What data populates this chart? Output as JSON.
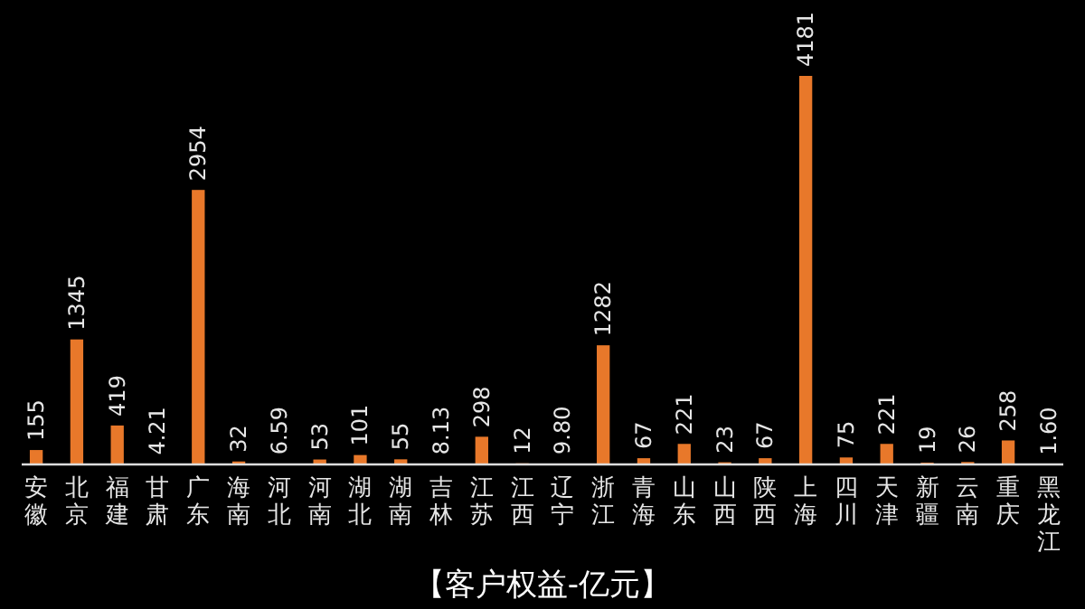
{
  "chart_data": {
    "type": "bar",
    "title": "【客户权益-亿元】",
    "categories": [
      "安徽",
      "北京",
      "福建",
      "甘肃",
      "广东",
      "海南",
      "河北",
      "河南",
      "湖北",
      "湖南",
      "吉林",
      "江苏",
      "江西",
      "辽宁",
      "浙江",
      "青海",
      "山东",
      "山西",
      "陕西",
      "上海",
      "四川",
      "天津",
      "新疆",
      "云南",
      "重庆",
      "黑龙江"
    ],
    "values": [
      155,
      1345,
      419,
      4.21,
      2954,
      32,
      6.59,
      53,
      101,
      55,
      8.13,
      298,
      12,
      9.8,
      1282,
      67,
      221,
      23,
      67,
      4181,
      75,
      221,
      19,
      26,
      258,
      1.6
    ],
    "value_labels": [
      "155",
      "1345",
      "419",
      "4.21",
      "2954",
      "32",
      "6.59",
      "53",
      "101",
      "55",
      "8.13",
      "298",
      "12",
      "9.80",
      "1282",
      "67",
      "221",
      "23",
      "67",
      "4181",
      "75",
      "221",
      "19",
      "26",
      "258",
      "1.60"
    ],
    "color": "#e8782a"
  }
}
